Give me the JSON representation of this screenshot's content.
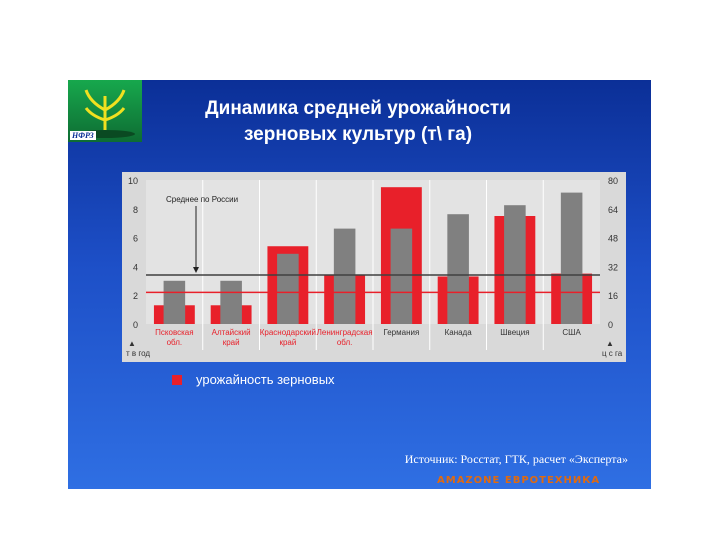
{
  "slide": {
    "title_line1": "Динамика средней урожайности",
    "title_line2": "зерновых культур (т\\ га)",
    "logo_text": "НФРЗ",
    "source": "Источник: Росстат, ГТК, расчет «Эксперта»",
    "brand": "AMAZONE ЕВРОТЕХНИКА"
  },
  "chart_data": {
    "type": "bar",
    "categories": [
      "Псковская обл.",
      "Алтайский край",
      "Краснодарский край",
      "Ленинградская обл.",
      "Германия",
      "Канада",
      "Швеция",
      "США"
    ],
    "series": [
      {
        "name": "урожайность зерновых",
        "axis": "left",
        "color": "#e8202a",
        "values": [
          1.3,
          1.3,
          5.4,
          3.4,
          9.5,
          3.3,
          7.5,
          3.5
        ]
      },
      {
        "axis": "right",
        "color": "#808080",
        "values": [
          24,
          24,
          39,
          53,
          53,
          61,
          66,
          73
        ]
      }
    ],
    "left_axis": {
      "ticks": [
        0,
        2,
        4,
        6,
        8,
        10
      ],
      "range": [
        0,
        10
      ],
      "unit_label": "т в год"
    },
    "right_axis": {
      "ticks": [
        0,
        16,
        32,
        48,
        64,
        80
      ],
      "range": [
        0,
        80
      ],
      "unit_label": "ц с га"
    },
    "reference_lines": [
      {
        "value": 2.2,
        "color": "#e8202a"
      },
      {
        "value": 3.4,
        "color": "#404040"
      }
    ],
    "annotation": "Среднее по России",
    "legend": {
      "label": "урожайность зерновых",
      "color": "#e8202a"
    }
  }
}
